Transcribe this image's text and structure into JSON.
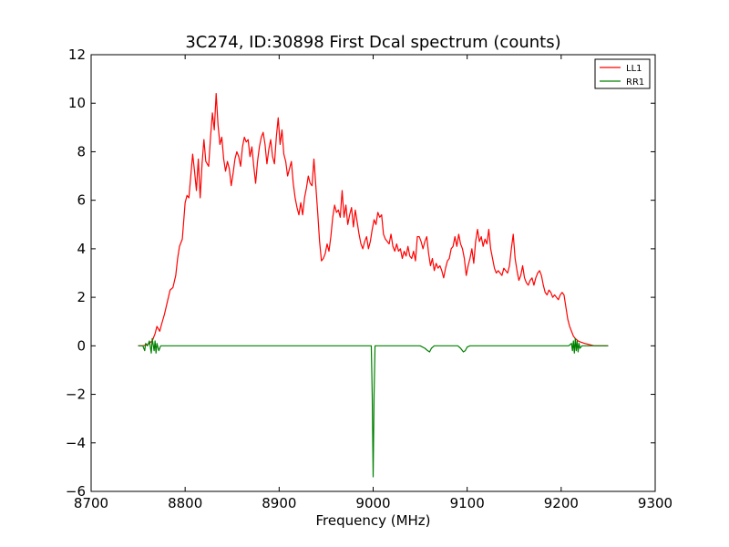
{
  "chart_data": {
    "type": "line",
    "title": "3C274, ID:30898 First Dcal spectrum (counts)",
    "xlabel": "Frequency (MHz)",
    "ylabel": "",
    "xlim": [
      8700,
      9300
    ],
    "ylim": [
      -6,
      12
    ],
    "xticks": [
      8700,
      8800,
      8900,
      9000,
      9100,
      9200,
      9300
    ],
    "yticks": [
      -6,
      -4,
      -2,
      0,
      2,
      4,
      6,
      8,
      10,
      12
    ],
    "grid": false,
    "legend_position": "top-right",
    "series": [
      {
        "name": "LL1",
        "color": "#ff0000",
        "points": [
          [
            8750,
            0.0
          ],
          [
            8755,
            0.0
          ],
          [
            8760,
            0.05
          ],
          [
            8765,
            0.2
          ],
          [
            8768,
            0.5
          ],
          [
            8770,
            0.8
          ],
          [
            8773,
            0.6
          ],
          [
            8775,
            0.9
          ],
          [
            8778,
            1.3
          ],
          [
            8781,
            1.8
          ],
          [
            8784,
            2.3
          ],
          [
            8787,
            2.4
          ],
          [
            8790,
            2.9
          ],
          [
            8792,
            3.6
          ],
          [
            8794,
            4.1
          ],
          [
            8797,
            4.4
          ],
          [
            8800,
            5.9
          ],
          [
            8802,
            6.2
          ],
          [
            8804,
            6.1
          ],
          [
            8806,
            7.0
          ],
          [
            8808,
            7.9
          ],
          [
            8810,
            7.2
          ],
          [
            8812,
            6.4
          ],
          [
            8814,
            7.7
          ],
          [
            8816,
            6.1
          ],
          [
            8818,
            7.5
          ],
          [
            8820,
            8.5
          ],
          [
            8822,
            7.6
          ],
          [
            8825,
            7.4
          ],
          [
            8827,
            8.6
          ],
          [
            8829,
            9.6
          ],
          [
            8831,
            8.9
          ],
          [
            8833,
            10.4
          ],
          [
            8835,
            9.1
          ],
          [
            8837,
            8.3
          ],
          [
            8839,
            8.6
          ],
          [
            8841,
            7.7
          ],
          [
            8843,
            7.2
          ],
          [
            8845,
            7.6
          ],
          [
            8847,
            7.3
          ],
          [
            8849,
            6.6
          ],
          [
            8851,
            7.1
          ],
          [
            8853,
            7.7
          ],
          [
            8855,
            8.0
          ],
          [
            8857,
            7.8
          ],
          [
            8859,
            7.4
          ],
          [
            8861,
            8.2
          ],
          [
            8863,
            8.6
          ],
          [
            8865,
            8.4
          ],
          [
            8867,
            8.5
          ],
          [
            8869,
            7.8
          ],
          [
            8871,
            8.2
          ],
          [
            8873,
            7.4
          ],
          [
            8875,
            6.7
          ],
          [
            8877,
            7.6
          ],
          [
            8879,
            8.2
          ],
          [
            8881,
            8.6
          ],
          [
            8883,
            8.8
          ],
          [
            8885,
            8.3
          ],
          [
            8887,
            7.5
          ],
          [
            8889,
            8.1
          ],
          [
            8891,
            8.5
          ],
          [
            8893,
            7.8
          ],
          [
            8895,
            7.5
          ],
          [
            8897,
            8.6
          ],
          [
            8899,
            9.4
          ],
          [
            8901,
            8.3
          ],
          [
            8903,
            8.9
          ],
          [
            8905,
            7.9
          ],
          [
            8907,
            7.6
          ],
          [
            8909,
            7.0
          ],
          [
            8911,
            7.3
          ],
          [
            8913,
            7.6
          ],
          [
            8915,
            6.7
          ],
          [
            8917,
            6.1
          ],
          [
            8919,
            5.7
          ],
          [
            8921,
            5.4
          ],
          [
            8923,
            5.9
          ],
          [
            8925,
            5.4
          ],
          [
            8927,
            6.1
          ],
          [
            8929,
            6.5
          ],
          [
            8931,
            7.0
          ],
          [
            8933,
            6.7
          ],
          [
            8935,
            6.6
          ],
          [
            8937,
            7.7
          ],
          [
            8939,
            6.6
          ],
          [
            8941,
            5.5
          ],
          [
            8943,
            4.3
          ],
          [
            8945,
            3.5
          ],
          [
            8947,
            3.6
          ],
          [
            8949,
            3.8
          ],
          [
            8951,
            4.2
          ],
          [
            8953,
            3.9
          ],
          [
            8955,
            4.5
          ],
          [
            8957,
            5.3
          ],
          [
            8959,
            5.8
          ],
          [
            8961,
            5.5
          ],
          [
            8963,
            5.6
          ],
          [
            8965,
            5.3
          ],
          [
            8967,
            6.4
          ],
          [
            8969,
            5.3
          ],
          [
            8971,
            5.8
          ],
          [
            8973,
            5.0
          ],
          [
            8975,
            5.4
          ],
          [
            8977,
            5.7
          ],
          [
            8979,
            4.9
          ],
          [
            8981,
            5.6
          ],
          [
            8983,
            5.1
          ],
          [
            8985,
            4.6
          ],
          [
            8987,
            4.2
          ],
          [
            8989,
            4.0
          ],
          [
            8991,
            4.3
          ],
          [
            8993,
            4.5
          ],
          [
            8995,
            4.0
          ],
          [
            8997,
            4.3
          ],
          [
            8999,
            4.8
          ],
          [
            9001,
            5.2
          ],
          [
            9003,
            5.0
          ],
          [
            9005,
            5.5
          ],
          [
            9007,
            5.3
          ],
          [
            9009,
            5.4
          ],
          [
            9011,
            4.6
          ],
          [
            9013,
            4.4
          ],
          [
            9015,
            4.3
          ],
          [
            9017,
            4.2
          ],
          [
            9019,
            4.6
          ],
          [
            9021,
            4.1
          ],
          [
            9023,
            3.9
          ],
          [
            9025,
            4.2
          ],
          [
            9027,
            3.9
          ],
          [
            9029,
            4.0
          ],
          [
            9031,
            3.6
          ],
          [
            9033,
            3.9
          ],
          [
            9035,
            3.7
          ],
          [
            9037,
            4.1
          ],
          [
            9039,
            3.7
          ],
          [
            9041,
            3.6
          ],
          [
            9043,
            3.9
          ],
          [
            9045,
            3.5
          ],
          [
            9047,
            4.5
          ],
          [
            9049,
            4.5
          ],
          [
            9051,
            4.3
          ],
          [
            9053,
            4.0
          ],
          [
            9055,
            4.3
          ],
          [
            9057,
            4.5
          ],
          [
            9059,
            3.8
          ],
          [
            9061,
            3.3
          ],
          [
            9063,
            3.6
          ],
          [
            9065,
            3.1
          ],
          [
            9067,
            3.4
          ],
          [
            9069,
            3.2
          ],
          [
            9071,
            3.3
          ],
          [
            9073,
            3.1
          ],
          [
            9075,
            2.8
          ],
          [
            9077,
            3.2
          ],
          [
            9079,
            3.5
          ],
          [
            9081,
            3.6
          ],
          [
            9083,
            4.0
          ],
          [
            9085,
            4.1
          ],
          [
            9087,
            4.5
          ],
          [
            9089,
            4.1
          ],
          [
            9091,
            4.6
          ],
          [
            9093,
            4.2
          ],
          [
            9095,
            4.0
          ],
          [
            9097,
            3.6
          ],
          [
            9099,
            2.9
          ],
          [
            9101,
            3.3
          ],
          [
            9103,
            3.6
          ],
          [
            9105,
            4.0
          ],
          [
            9107,
            3.4
          ],
          [
            9109,
            4.3
          ],
          [
            9111,
            4.8
          ],
          [
            9113,
            4.3
          ],
          [
            9115,
            4.5
          ],
          [
            9117,
            4.1
          ],
          [
            9119,
            4.4
          ],
          [
            9121,
            4.2
          ],
          [
            9123,
            4.8
          ],
          [
            9125,
            4.0
          ],
          [
            9127,
            3.6
          ],
          [
            9129,
            3.2
          ],
          [
            9131,
            3.0
          ],
          [
            9133,
            3.1
          ],
          [
            9135,
            3.0
          ],
          [
            9137,
            2.9
          ],
          [
            9139,
            3.2
          ],
          [
            9141,
            3.1
          ],
          [
            9143,
            3.0
          ],
          [
            9145,
            3.3
          ],
          [
            9147,
            4.0
          ],
          [
            9149,
            4.6
          ],
          [
            9151,
            3.6
          ],
          [
            9153,
            3.1
          ],
          [
            9155,
            2.7
          ],
          [
            9157,
            2.9
          ],
          [
            9159,
            3.3
          ],
          [
            9161,
            2.8
          ],
          [
            9163,
            2.6
          ],
          [
            9165,
            2.5
          ],
          [
            9167,
            2.7
          ],
          [
            9169,
            2.8
          ],
          [
            9171,
            2.5
          ],
          [
            9173,
            2.8
          ],
          [
            9175,
            3.0
          ],
          [
            9177,
            3.1
          ],
          [
            9179,
            2.9
          ],
          [
            9181,
            2.5
          ],
          [
            9183,
            2.2
          ],
          [
            9185,
            2.1
          ],
          [
            9187,
            2.3
          ],
          [
            9189,
            2.2
          ],
          [
            9191,
            2.0
          ],
          [
            9193,
            2.1
          ],
          [
            9195,
            2.0
          ],
          [
            9197,
            1.9
          ],
          [
            9199,
            2.1
          ],
          [
            9201,
            2.2
          ],
          [
            9203,
            2.1
          ],
          [
            9205,
            1.6
          ],
          [
            9207,
            1.1
          ],
          [
            9209,
            0.8
          ],
          [
            9211,
            0.6
          ],
          [
            9213,
            0.4
          ],
          [
            9215,
            0.3
          ],
          [
            9218,
            0.2
          ],
          [
            9221,
            0.15
          ],
          [
            9225,
            0.1
          ],
          [
            9230,
            0.05
          ],
          [
            9235,
            0.0
          ],
          [
            9240,
            0.0
          ],
          [
            9245,
            0.0
          ],
          [
            9250,
            0.0
          ]
        ]
      },
      {
        "name": "RR1",
        "color": "#008000",
        "points": [
          [
            8750,
            0.0
          ],
          [
            8755,
            0.0
          ],
          [
            8757,
            -0.2
          ],
          [
            8758,
            0.1
          ],
          [
            8760,
            0.0
          ],
          [
            8762,
            0.2
          ],
          [
            8764,
            -0.3
          ],
          [
            8765,
            0.3
          ],
          [
            8767,
            -0.2
          ],
          [
            8768,
            0.2
          ],
          [
            8769,
            -0.3
          ],
          [
            8770,
            0.1
          ],
          [
            8772,
            -0.2
          ],
          [
            8774,
            0.0
          ],
          [
            8780,
            0.0
          ],
          [
            8800,
            0.0
          ],
          [
            8850,
            0.0
          ],
          [
            8900,
            0.0
          ],
          [
            8950,
            0.0
          ],
          [
            8998,
            0.0
          ],
          [
            8999,
            -2.0
          ],
          [
            9000,
            -5.4
          ],
          [
            9001,
            -2.0
          ],
          [
            9002,
            0.0
          ],
          [
            9050,
            0.0
          ],
          [
            9055,
            -0.1
          ],
          [
            9058,
            -0.2
          ],
          [
            9060,
            -0.25
          ],
          [
            9062,
            -0.1
          ],
          [
            9065,
            0.0
          ],
          [
            9090,
            0.0
          ],
          [
            9093,
            -0.1
          ],
          [
            9096,
            -0.25
          ],
          [
            9098,
            -0.2
          ],
          [
            9100,
            -0.05
          ],
          [
            9103,
            0.0
          ],
          [
            9150,
            0.0
          ],
          [
            9200,
            0.0
          ],
          [
            9208,
            0.0
          ],
          [
            9211,
            0.1
          ],
          [
            9212,
            -0.2
          ],
          [
            9213,
            0.2
          ],
          [
            9214,
            -0.3
          ],
          [
            9215,
            0.3
          ],
          [
            9216,
            -0.2
          ],
          [
            9217,
            0.2
          ],
          [
            9218,
            -0.25
          ],
          [
            9219,
            0.1
          ],
          [
            9220,
            -0.1
          ],
          [
            9222,
            0.0
          ],
          [
            9230,
            0.0
          ],
          [
            9250,
            0.0
          ]
        ]
      }
    ]
  }
}
